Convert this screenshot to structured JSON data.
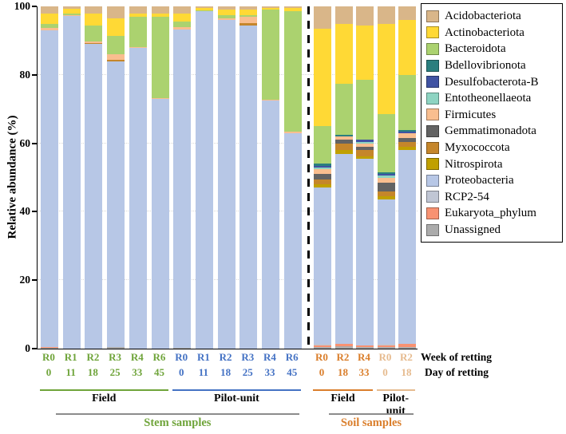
{
  "labels": {
    "week_of_retting": "Week of retting",
    "day_of_retting": "Day of retting"
  },
  "chart_data": {
    "type": "bar",
    "subtype": "stacked-percentage",
    "title": "",
    "ylabel": "Relative abundance (%)",
    "xlabel": "",
    "ylim": [
      0,
      100
    ],
    "yticks": [
      0,
      20,
      40,
      60,
      80,
      100
    ],
    "grid": "dotted-horizontal",
    "legend_position": "right",
    "separator_after_bar_index": 11,
    "phyla": [
      {
        "name": "Acidobacteriota",
        "color": "#D9B689"
      },
      {
        "name": "Actinobacteriota",
        "color": "#FFD935"
      },
      {
        "name": "Bacteroidota",
        "color": "#ABD26F"
      },
      {
        "name": "Bdellovibrionota",
        "color": "#2A7F7F"
      },
      {
        "name": "Desulfobacterota-B",
        "color": "#4053A3"
      },
      {
        "name": "Entotheonellaeota",
        "color": "#8ED4C2"
      },
      {
        "name": "Firmicutes",
        "color": "#F9BE8F"
      },
      {
        "name": "Gemmatimonadota",
        "color": "#636363"
      },
      {
        "name": "Myxococcota",
        "color": "#C5862B"
      },
      {
        "name": "Nitrospirota",
        "color": "#C0A000"
      },
      {
        "name": "Proteobacteria",
        "color": "#B7C7E6"
      },
      {
        "name": "RCP2-54",
        "color": "#C0C6D4"
      },
      {
        "name": "Eukaryota_phylum",
        "color": "#F89272"
      },
      {
        "name": "Unassigned",
        "color": "#ABABAB"
      }
    ],
    "group_colors": {
      "stem-field": "#6FA43A",
      "stem-pilot": "#4472C4",
      "soil-field": "#DA7E2B",
      "soil-pilot": "#E6BB8F"
    },
    "bars": [
      {
        "week": "R0",
        "day": "0",
        "group": "stem-field",
        "values": {
          "Proteobacteria": 92.5,
          "Firmicutes": 0.7,
          "Bacteroidota": 1.3,
          "Actinobacteriota": 3.0,
          "Acidobacteriota": 2.0,
          "Eukaryota_phylum": 0.2,
          "Unassigned": 0.3
        }
      },
      {
        "week": "R1",
        "day": "11",
        "group": "stem-field",
        "values": {
          "Proteobacteria": 97.3,
          "Firmicutes": 0.2,
          "Bacteroidota": 0.5,
          "Actinobacteriota": 1.2,
          "Acidobacteriota": 0.8
        }
      },
      {
        "week": "R2",
        "day": "18",
        "group": "stem-field",
        "values": {
          "Proteobacteria": 89.0,
          "Firmicutes": 0.5,
          "Myxococcota": 0.3,
          "Bacteroidota": 4.7,
          "Actinobacteriota": 3.5,
          "Acidobacteriota": 2.0
        }
      },
      {
        "week": "R3",
        "day": "25",
        "group": "stem-field",
        "values": {
          "Proteobacteria": 83.5,
          "Firmicutes": 1.5,
          "Myxococcota": 0.5,
          "Bacteroidota": 5.5,
          "Actinobacteriota": 5.0,
          "Acidobacteriota": 3.5,
          "Unassigned": 0.5
        }
      },
      {
        "week": "R4",
        "day": "33",
        "group": "stem-field",
        "values": {
          "Proteobacteria": 87.8,
          "Firmicutes": 0.4,
          "Bacteroidota": 8.8,
          "Actinobacteriota": 1.0,
          "Acidobacteriota": 2.0
        }
      },
      {
        "week": "R6",
        "day": "45",
        "group": "stem-field",
        "values": {
          "Proteobacteria": 73.0,
          "Firmicutes": 0.3,
          "Bacteroidota": 23.7,
          "Actinobacteriota": 1.0,
          "Acidobacteriota": 2.0
        }
      },
      {
        "week": "R0",
        "day": "0",
        "group": "stem-pilot",
        "values": {
          "Proteobacteria": 93.0,
          "Firmicutes": 0.7,
          "Bacteroidota": 1.5,
          "Actinobacteriota": 2.5,
          "Acidobacteriota": 2.0,
          "Unassigned": 0.3
        }
      },
      {
        "week": "R1",
        "day": "11",
        "group": "stem-pilot",
        "values": {
          "Proteobacteria": 98.5,
          "Bacteroidota": 0.3,
          "Actinobacteriota": 0.7,
          "Acidobacteriota": 0.5
        }
      },
      {
        "week": "R2",
        "day": "18",
        "group": "stem-pilot",
        "values": {
          "Proteobacteria": 96.0,
          "Firmicutes": 0.5,
          "Bacteroidota": 1.0,
          "Actinobacteriota": 1.5,
          "Acidobacteriota": 1.0
        }
      },
      {
        "week": "R3",
        "day": "25",
        "group": "stem-pilot",
        "values": {
          "Proteobacteria": 94.5,
          "Firmicutes": 2.0,
          "Myxococcota": 0.5,
          "Bacteroidota": 0.5,
          "Actinobacteriota": 1.5,
          "Acidobacteriota": 1.0
        }
      },
      {
        "week": "R4",
        "day": "33",
        "group": "stem-pilot",
        "values": {
          "Proteobacteria": 72.5,
          "Firmicutes": 0.3,
          "Bacteroidota": 26.2,
          "Actinobacteriota": 0.5,
          "Acidobacteriota": 0.5
        }
      },
      {
        "week": "R6",
        "day": "45",
        "group": "stem-pilot",
        "values": {
          "Proteobacteria": 63.0,
          "Firmicutes": 0.3,
          "Bacteroidota": 35.2,
          "Actinobacteriota": 1.0,
          "Acidobacteriota": 0.5
        }
      },
      {
        "week": "R0",
        "day": "0",
        "group": "soil-field",
        "values": {
          "Unassigned": 0.5,
          "Eukaryota_phylum": 0.5,
          "RCP2-54": 0.5,
          "Proteobacteria": 45.5,
          "Nitrospirota": 1.0,
          "Myxococcota": 1.5,
          "Gemmatimonadota": 1.5,
          "Firmicutes": 1.5,
          "Entotheonellaeota": 0.5,
          "Desulfobacterota-B": 0.5,
          "Bdellovibrionota": 0.5,
          "Bacteroidota": 11.0,
          "Actinobacteriota": 28.5,
          "Acidobacteriota": 6.5
        }
      },
      {
        "week": "R2",
        "day": "18",
        "group": "soil-field",
        "values": {
          "Unassigned": 0.8,
          "Eukaryota_phylum": 0.5,
          "Proteobacteria": 55.7,
          "Nitrospirota": 1.0,
          "Myxococcota": 2.0,
          "Gemmatimonadota": 1.0,
          "Firmicutes": 1.0,
          "Bdellovibrionota": 0.5,
          "Bacteroidota": 15.0,
          "Actinobacteriota": 17.5,
          "Acidobacteriota": 5.0
        }
      },
      {
        "week": "R4",
        "day": "33",
        "group": "soil-field",
        "values": {
          "Unassigned": 0.5,
          "Eukaryota_phylum": 0.5,
          "Proteobacteria": 54.5,
          "Nitrospirota": 0.8,
          "Myxococcota": 1.7,
          "Gemmatimonadota": 1.0,
          "Firmicutes": 1.0,
          "Entotheonellaeota": 0.5,
          "Desulfobacterota-B": 0.5,
          "Bacteroidota": 17.5,
          "Actinobacteriota": 16.0,
          "Acidobacteriota": 5.5
        }
      },
      {
        "week": "R0",
        "day": "0",
        "group": "soil-pilot",
        "values": {
          "Unassigned": 0.5,
          "Eukaryota_phylum": 0.5,
          "RCP2-54": 0.5,
          "Proteobacteria": 42.0,
          "Nitrospirota": 1.0,
          "Myxococcota": 1.5,
          "Gemmatimonadota": 2.5,
          "Firmicutes": 1.5,
          "Entotheonellaeota": 0.5,
          "Desulfobacterota-B": 0.5,
          "Bdellovibrionota": 0.5,
          "Bacteroidota": 17.0,
          "Actinobacteriota": 26.5,
          "Acidobacteriota": 5.0
        }
      },
      {
        "week": "R2",
        "day": "18",
        "group": "soil-pilot",
        "values": {
          "Unassigned": 0.5,
          "Eukaryota_phylum": 1.0,
          "Proteobacteria": 56.5,
          "Nitrospirota": 1.0,
          "Myxococcota": 1.5,
          "Gemmatimonadota": 1.0,
          "Firmicutes": 1.5,
          "Desulfobacterota-B": 0.5,
          "Bdellovibrionota": 0.5,
          "Bacteroidota": 16.0,
          "Actinobacteriota": 16.0,
          "Acidobacteriota": 4.0
        }
      }
    ],
    "condition_groups": [
      {
        "label": "Field",
        "line_color": "#6FA43A",
        "bar_start": 0,
        "bar_end": 5
      },
      {
        "label": "Pilot-unit",
        "line_color": "#4472C4",
        "bar_start": 6,
        "bar_end": 11
      },
      {
        "label": "Field",
        "line_color": "#DA7E2B",
        "bar_start": 12,
        "bar_end": 14
      },
      {
        "label": "Pilot-unit",
        "line_color": "#E6BB8F",
        "bar_start": 15,
        "bar_end": 16
      }
    ],
    "sample_groups": [
      {
        "label": "Stem samples",
        "text_color": "#6FA43A",
        "line_color": "#8c8c8c",
        "bar_start": 0,
        "bar_end": 11
      },
      {
        "label": "Soil samples",
        "text_color": "#DA7E2B",
        "line_color": "#8c8c8c",
        "bar_start": 12,
        "bar_end": 16
      }
    ]
  }
}
